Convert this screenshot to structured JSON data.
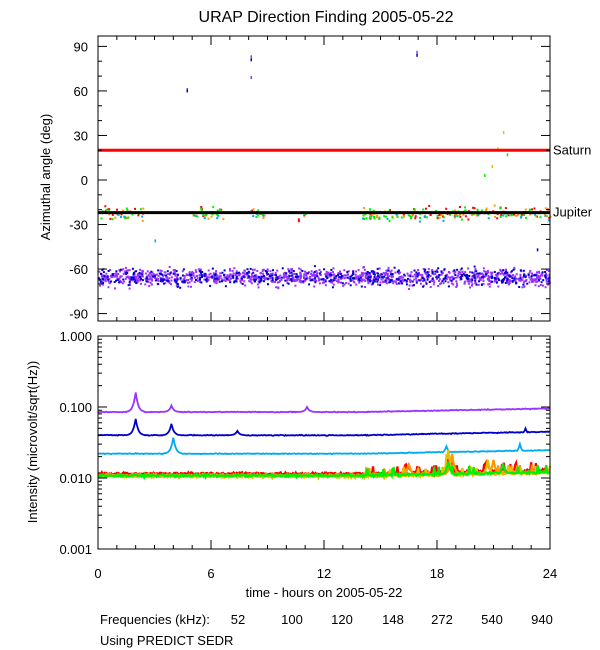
{
  "chart_data": {
    "type": "scatter",
    "title": "URAP Direction Finding  2005-05-22",
    "xlabel": "time - hours on 2005-05-22",
    "x_range": [
      0,
      24
    ],
    "x_ticks": [
      "0",
      "6",
      "12",
      "18",
      "24"
    ],
    "legend_prefix": "Frequencies (kHz):",
    "footer_note": "Using PREDICT SEDR",
    "frequencies": [
      {
        "name": "52",
        "color": "#ff0000"
      },
      {
        "name": "100",
        "color": "#ff9900"
      },
      {
        "name": "120",
        "color": "#e6c000"
      },
      {
        "name": "148",
        "color": "#00ee00"
      },
      {
        "name": "272",
        "color": "#00aaee"
      },
      {
        "name": "540",
        "color": "#0000cc"
      },
      {
        "name": "940",
        "color": "#9933ff"
      }
    ],
    "panels": [
      {
        "id": "azimuth",
        "ylabel": "Azimuthal angle (deg)",
        "y_range": [
          -95,
          97
        ],
        "y_ticks": [
          "90",
          "60",
          "30",
          "0",
          "-30",
          "-60",
          "-90"
        ],
        "y_tick_values": [
          90,
          60,
          30,
          0,
          -30,
          -60,
          -90
        ],
        "reference_lines": [
          {
            "label": "Saturn",
            "y": 20,
            "color": "#ff0000"
          },
          {
            "label": "Jupiter",
            "y": -22,
            "color": "#000000"
          }
        ],
        "bands": [
          {
            "freq": "940",
            "center": -65,
            "spread": 8,
            "x_from": 0,
            "x_to": 24,
            "density": 1.0
          },
          {
            "freq": "540",
            "center": -65,
            "spread": 9,
            "x_from": 0,
            "x_to": 24,
            "density": 0.35
          },
          {
            "freq": "52",
            "center": -22,
            "spread": 6,
            "x_from": 0,
            "x_to": 24,
            "density": 0.25
          },
          {
            "freq": "100",
            "center": -22,
            "spread": 6,
            "x_from": 0,
            "x_to": 24,
            "density": 0.2
          },
          {
            "freq": "148",
            "center": -22,
            "spread": 6,
            "x_from": 0,
            "x_to": 24,
            "density": 0.3
          },
          {
            "freq": "272",
            "center": -24,
            "spread": 5,
            "x_from": 0,
            "x_to": 24,
            "density": 0.08
          }
        ],
        "clusters": [
          [
            0,
            2.4
          ],
          [
            5,
            6.7
          ],
          [
            8,
            8.8
          ],
          [
            10.6,
            11
          ],
          [
            14,
            24
          ]
        ],
        "outliers": [
          {
            "freq": "940",
            "x": 4.7,
            "y": 62
          },
          {
            "freq": "540",
            "x": 4.7,
            "y": 61
          },
          {
            "freq": "940",
            "x": 8.1,
            "y": 84
          },
          {
            "freq": "540",
            "x": 8.1,
            "y": 82
          },
          {
            "freq": "940",
            "x": 8.1,
            "y": 70
          },
          {
            "freq": "940",
            "x": 16.9,
            "y": 87
          },
          {
            "freq": "540",
            "x": 16.9,
            "y": 85
          },
          {
            "freq": "120",
            "x": 21.5,
            "y": 33
          },
          {
            "freq": "120",
            "x": 21.2,
            "y": 22
          },
          {
            "freq": "148",
            "x": 21.7,
            "y": 18
          },
          {
            "freq": "120",
            "x": 20.9,
            "y": 10
          },
          {
            "freq": "148",
            "x": 20.5,
            "y": 4
          },
          {
            "freq": "540",
            "x": 23.3,
            "y": -46
          },
          {
            "freq": "272",
            "x": 3.0,
            "y": -40
          }
        ]
      },
      {
        "id": "intensity",
        "ylabel": "Intensity (microvolt/sqrt(Hz))",
        "y_scale": "log",
        "y_range": [
          0.001,
          1.0
        ],
        "y_ticks": [
          "1.000",
          "0.100",
          "0.010",
          "0.001"
        ],
        "y_tick_values": [
          1.0,
          0.1,
          0.01,
          0.001
        ],
        "series": [
          {
            "freq": "940",
            "baseline": 0.085,
            "peaks": [
              {
                "x": 2.0,
                "v": 0.16
              },
              {
                "x": 3.9,
                "v": 0.105
              },
              {
                "x": 11.1,
                "v": 0.1
              }
            ]
          },
          {
            "freq": "540",
            "baseline": 0.04,
            "peaks": [
              {
                "x": 2.0,
                "v": 0.068
              },
              {
                "x": 3.9,
                "v": 0.058
              },
              {
                "x": 7.4,
                "v": 0.046
              },
              {
                "x": 22.7,
                "v": 0.05
              }
            ]
          },
          {
            "freq": "272",
            "baseline": 0.022,
            "peaks": [
              {
                "x": 4.0,
                "v": 0.037
              },
              {
                "x": 18.5,
                "v": 0.028
              },
              {
                "x": 22.4,
                "v": 0.03
              }
            ]
          },
          {
            "freq": "52",
            "baseline": 0.0115,
            "peaks": [
              {
                "x": 16.5,
                "v": 0.015
              },
              {
                "x": 18.6,
                "v": 0.02
              },
              {
                "x": 20.7,
                "v": 0.016
              }
            ]
          },
          {
            "freq": "100",
            "baseline": 0.011,
            "peaks": [
              {
                "x": 16.5,
                "v": 0.016
              },
              {
                "x": 18.8,
                "v": 0.022
              },
              {
                "x": 21.0,
                "v": 0.018
              }
            ]
          },
          {
            "freq": "120",
            "baseline": 0.0105,
            "peaks": [
              {
                "x": 18.6,
                "v": 0.025
              },
              {
                "x": 20.7,
                "v": 0.018
              }
            ]
          },
          {
            "freq": "148",
            "baseline": 0.0108,
            "peaks": [
              {
                "x": 18.6,
                "v": 0.017
              },
              {
                "x": 21.5,
                "v": 0.016
              }
            ]
          }
        ]
      }
    ]
  }
}
